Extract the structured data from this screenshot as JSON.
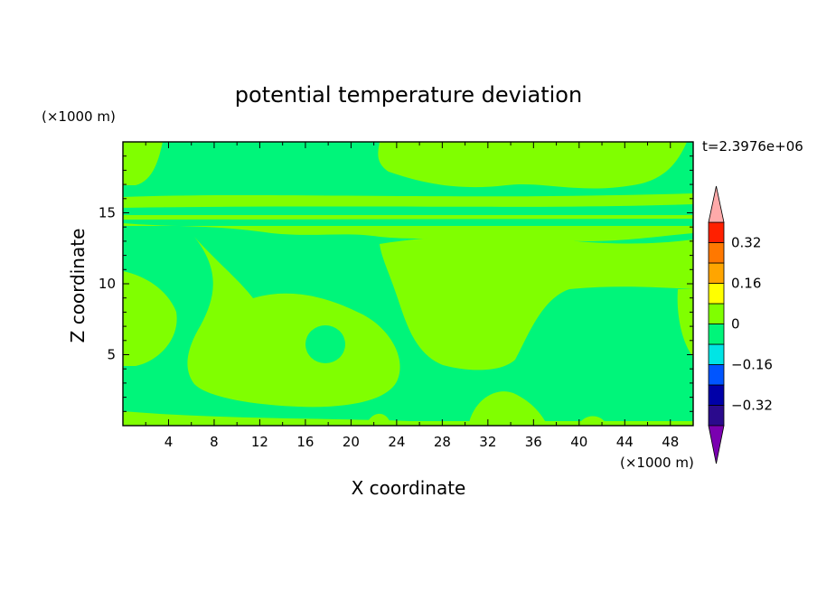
{
  "chart_data": {
    "type": "heatmap",
    "title": "potential temperature deviation",
    "xlabel": "X coordinate",
    "ylabel": "Z coordinate",
    "x_unit": "(×1000 m)",
    "y_unit": "(×1000 m)",
    "time_label": "t=2.3976e+06",
    "xlim": [
      0,
      50
    ],
    "ylim": [
      0,
      20
    ],
    "x_ticks": [
      4,
      8,
      12,
      16,
      20,
      24,
      28,
      32,
      36,
      40,
      44,
      48
    ],
    "y_ticks": [
      5,
      10,
      15
    ],
    "grid": false,
    "colorbar": {
      "levels": [
        -0.4,
        -0.32,
        -0.24,
        -0.16,
        -0.08,
        0,
        0.08,
        0.16,
        0.24,
        0.32,
        0.4
      ],
      "labels": [
        "0.32",
        "0.16",
        "0",
        "−0.16",
        "−0.32"
      ],
      "label_values": [
        0.32,
        0.16,
        0,
        -0.16,
        -0.32
      ],
      "colors": [
        "#2a0a8c",
        "#0000a8",
        "#0055ff",
        "#00e5e5",
        "#00f57a",
        "#80ff00",
        "#ffff00",
        "#ffa500",
        "#ff7800",
        "#ff2000"
      ],
      "over_color": "#ffaaaa",
      "under_color": "#7a00b0",
      "placement": "right"
    },
    "field_colors": {
      "negative": "#00f57a",
      "positive": "#80ff00",
      "cold_spots": "#00e5e5"
    }
  }
}
